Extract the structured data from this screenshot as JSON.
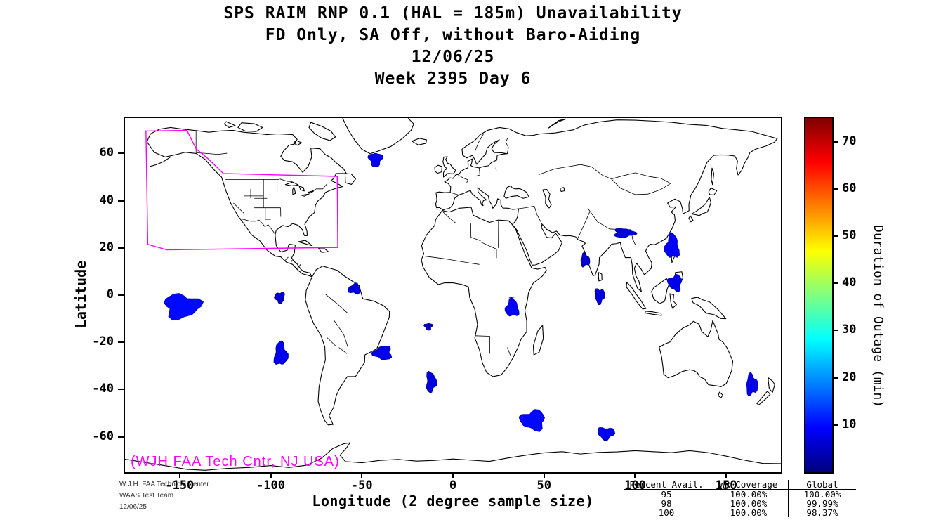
{
  "chart_data": {
    "type": "heatmap",
    "projection": "equirectangular world map",
    "title": "SPS RAIM RNP 0.1 (HAL = 185m) Unavailability",
    "subtitle_lines": [
      "FD Only, SA Off, without Baro-Aiding",
      "12/06/25",
      "Week 2395 Day 6"
    ],
    "xlabel": "Longitude (2 degree sample size)",
    "ylabel": "Latitude",
    "xlim": [
      -180,
      180
    ],
    "ylim": [
      -75,
      75
    ],
    "xticks": [
      -150,
      -100,
      -50,
      0,
      50,
      100,
      150
    ],
    "yticks": [
      60,
      40,
      20,
      0,
      -20,
      -40,
      -60
    ],
    "grid": false,
    "colorbar": {
      "label": "Duration of Outage (min)",
      "ticks": [
        10,
        20,
        30,
        40,
        50,
        60,
        70
      ],
      "range": [
        0,
        75
      ],
      "colormap": "jet",
      "position": "right"
    },
    "annotation": {
      "text": "(WJH FAA Tech Cntr, NJ USA)",
      "color": "#ff00ff"
    },
    "waas_region_color": "#ff00ff",
    "waas_boundary": [
      [
        -168.5,
        69.5
      ],
      [
        -146,
        69.8
      ],
      [
        -141,
        62
      ],
      [
        -134,
        57.5
      ],
      [
        -126,
        51.5
      ],
      [
        -63.5,
        50.3
      ],
      [
        -63.2,
        20.2
      ],
      [
        -157,
        19.2
      ],
      [
        -167.5,
        21.5
      ]
    ],
    "outage_regions": [
      {
        "lon": -42.5,
        "lat": 57.5,
        "rx": 3.5,
        "ry": 2.8,
        "duration_min": 8
      },
      {
        "lon": 94,
        "lat": 26.3,
        "rx": 5.5,
        "ry": 1.8,
        "duration_min": 7
      },
      {
        "lon": 120.3,
        "lat": 20.5,
        "rx": 3.6,
        "ry": 5,
        "duration_min": 9
      },
      {
        "lon": 122,
        "lat": 5.2,
        "rx": 3.6,
        "ry": 3.2,
        "duration_min": 8
      },
      {
        "lon": 80.5,
        "lat": -0.3,
        "rx": 2.6,
        "ry": 3,
        "duration_min": 7
      },
      {
        "lon": 72.5,
        "lat": 14.8,
        "rx": 2.4,
        "ry": 2.6,
        "duration_min": 6
      },
      {
        "lon": -54,
        "lat": 2.6,
        "rx": 3.2,
        "ry": 2,
        "duration_min": 7
      },
      {
        "lon": -95,
        "lat": -1,
        "rx": 2.6,
        "ry": 2.2,
        "duration_min": 6
      },
      {
        "lon": -148.8,
        "lat": -4.7,
        "rx": 9.5,
        "ry": 5,
        "duration_min": 10
      },
      {
        "lon": -94.5,
        "lat": -25,
        "rx": 3.4,
        "ry": 4.8,
        "duration_min": 8
      },
      {
        "lon": -38.5,
        "lat": -24.5,
        "rx": 4.8,
        "ry": 2.8,
        "duration_min": 8
      },
      {
        "lon": -13.5,
        "lat": -13.3,
        "rx": 2,
        "ry": 1.4,
        "duration_min": 5
      },
      {
        "lon": -12,
        "lat": -36.8,
        "rx": 2.6,
        "ry": 4.2,
        "duration_min": 7
      },
      {
        "lon": 32.5,
        "lat": -5.5,
        "rx": 3.4,
        "ry": 3.6,
        "duration_min": 9
      },
      {
        "lon": 44,
        "lat": -53,
        "rx": 6.5,
        "ry": 4,
        "duration_min": 10
      },
      {
        "lon": 84,
        "lat": -58.5,
        "rx": 4.5,
        "ry": 2.4,
        "duration_min": 8
      },
      {
        "lon": 164,
        "lat": -38,
        "rx": 3,
        "ry": 4.2,
        "duration_min": 8
      }
    ]
  },
  "footer": {
    "credits": [
      "W.J.H. FAA Technical Center",
      "WAAS Test Team",
      "12/06/25"
    ],
    "stats_table": {
      "headers": [
        "Percent Avail.",
        "WR Coverage",
        "Global"
      ],
      "rows": [
        [
          "95",
          "100.00%",
          "100.00%"
        ],
        [
          "98",
          "100.00%",
          "99.99%"
        ],
        [
          "100",
          "100.00%",
          "98.37%"
        ]
      ]
    }
  }
}
